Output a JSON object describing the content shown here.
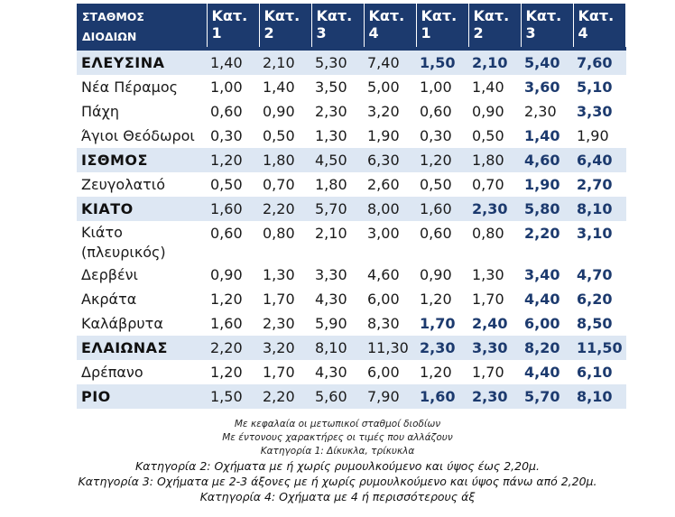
{
  "table": {
    "header": [
      "ΣΤΑΘΜΟΣ ΔΙΟΔΙΩΝ",
      "Κατ. 1",
      "Κατ. 2",
      "Κατ. 3",
      "Κατ. 4",
      "Κατ. 1",
      "Κατ. 2",
      "Κατ. 3",
      "Κατ. 4"
    ],
    "rows": [
      {
        "name": "ΕΛΕΥΣΙΝΑ",
        "main": true,
        "values": [
          "1,40",
          "2,10",
          "5,30",
          "7,40",
          "1,50",
          "2,10",
          "5,40",
          "7,60"
        ],
        "bold": [
          false,
          false,
          false,
          false,
          true,
          true,
          true,
          true
        ]
      },
      {
        "name": "Νέα Πέραμος",
        "main": false,
        "values": [
          "1,00",
          "1,40",
          "3,50",
          "5,00",
          "1,00",
          "1,40",
          "3,60",
          "5,10"
        ],
        "bold": [
          false,
          false,
          false,
          false,
          false,
          false,
          true,
          true
        ]
      },
      {
        "name": "Πάχη",
        "main": false,
        "values": [
          "0,60",
          "0,90",
          "2,30",
          "3,20",
          "0,60",
          "0,90",
          "2,30",
          "3,30"
        ],
        "bold": [
          false,
          false,
          false,
          false,
          false,
          false,
          false,
          true
        ]
      },
      {
        "name": "Άγιοι Θεόδωροι",
        "main": false,
        "values": [
          "0,30",
          "0,50",
          "1,30",
          "1,90",
          "0,30",
          "0,50",
          "1,40",
          "1,90"
        ],
        "bold": [
          false,
          false,
          false,
          false,
          false,
          false,
          true,
          false
        ]
      },
      {
        "name": "ΙΣΘΜΟΣ",
        "main": true,
        "values": [
          "1,20",
          "1,80",
          "4,50",
          "6,30",
          "1,20",
          "1,80",
          "4,60",
          "6,40"
        ],
        "bold": [
          false,
          false,
          false,
          false,
          false,
          false,
          true,
          true
        ]
      },
      {
        "name": "Ζευγολατιό",
        "main": false,
        "values": [
          "0,50",
          "0,70",
          "1,80",
          "2,60",
          "0,50",
          "0,70",
          "1,90",
          "2,70"
        ],
        "bold": [
          false,
          false,
          false,
          false,
          false,
          false,
          true,
          true
        ]
      },
      {
        "name": "ΚΙΑΤΟ",
        "main": true,
        "values": [
          "1,60",
          "2,20",
          "5,70",
          "8,00",
          "1,60",
          "2,30",
          "5,80",
          "8,10"
        ],
        "bold": [
          false,
          false,
          false,
          false,
          false,
          true,
          true,
          true
        ]
      },
      {
        "name": "Κιάτο (πλευρικός)",
        "main": false,
        "tall": true,
        "values": [
          "0,60",
          "0,80",
          "2,10",
          "3,00",
          "0,60",
          "0,80",
          "2,20",
          "3,10"
        ],
        "bold": [
          false,
          false,
          false,
          false,
          false,
          false,
          true,
          true
        ]
      },
      {
        "name": "Δερβένι",
        "main": false,
        "values": [
          "0,90",
          "1,30",
          "3,30",
          "4,60",
          "0,90",
          "1,30",
          "3,40",
          "4,70"
        ],
        "bold": [
          false,
          false,
          false,
          false,
          false,
          false,
          true,
          true
        ]
      },
      {
        "name": "Ακράτα",
        "main": false,
        "values": [
          "1,20",
          "1,70",
          "4,30",
          "6,00",
          "1,20",
          "1,70",
          "4,40",
          "6,20"
        ],
        "bold": [
          false,
          false,
          false,
          false,
          false,
          false,
          true,
          true
        ]
      },
      {
        "name": "Καλάβρυτα",
        "main": false,
        "values": [
          "1,60",
          "2,30",
          "5,90",
          "8,30",
          "1,70",
          "2,40",
          "6,00",
          "8,50"
        ],
        "bold": [
          false,
          false,
          false,
          false,
          true,
          true,
          true,
          true
        ]
      },
      {
        "name": "ΕΛΑΙΩΝΑΣ",
        "main": true,
        "values": [
          "2,20",
          "3,20",
          "8,10",
          "11,30",
          "2,30",
          "3,30",
          "8,20",
          "11,50"
        ],
        "bold": [
          false,
          false,
          false,
          false,
          true,
          true,
          true,
          true
        ]
      },
      {
        "name": "Δρέπανο",
        "main": false,
        "values": [
          "1,20",
          "1,70",
          "4,30",
          "6,00",
          "1,20",
          "1,70",
          "4,40",
          "6,10"
        ],
        "bold": [
          false,
          false,
          false,
          false,
          false,
          false,
          true,
          true
        ]
      },
      {
        "name": "ΡΙΟ",
        "main": true,
        "values": [
          "1,50",
          "2,20",
          "5,60",
          "7,90",
          "1,60",
          "2,30",
          "5,70",
          "8,10"
        ],
        "bold": [
          false,
          false,
          false,
          false,
          true,
          true,
          true,
          true
        ]
      }
    ]
  },
  "notes": {
    "main_stations": "Με κεφαλαία οι μετωπικοί σταθμοί διοδίων",
    "bold_prices": "Με έντονους χαρακτήρες οι τιμές που αλλάζουν",
    "cat1": "Κατηγορία 1: Δίκυκλα, τρίκυκλα",
    "cat2": "Κατηγορία 2: Οχήματα με ή χωρίς ρυμουλκούμενο και ύψος έως 2,20μ.",
    "cat3": "Κατηγορία 3: Οχήματα με 2-3 άξονες με ή χωρίς ρυμουλκούμενο και ύψος πάνω από 2,20μ.",
    "cat4": "Κατηγορία 4: Οχήματα με 4 ή περισσότερους άξ"
  }
}
